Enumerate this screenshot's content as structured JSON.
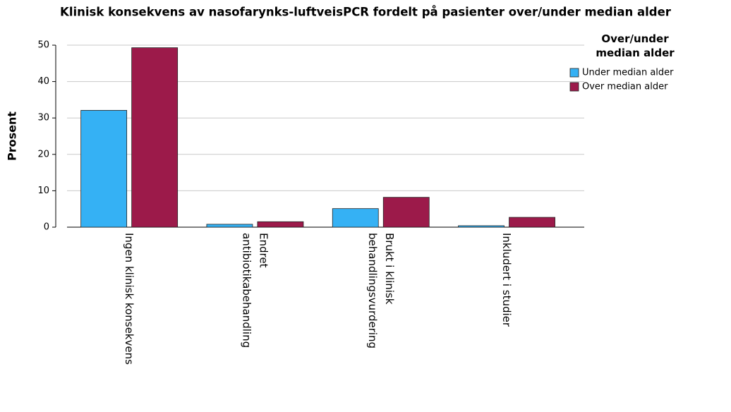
{
  "chart_data": {
    "type": "bar",
    "title": "Klinisk konsekvens av nasofarynks-luftveisPCR fordelt på pasienter over/under median alder",
    "y_label": "Prosent",
    "legend_title": "Over/under\nmedian alder",
    "categories": [
      "Ingen klinisk konsekvens",
      "Endret\nantibiotikabehandling",
      "Brukt i klinisk\nbehandlingsvurdering",
      "Inkludert i studier"
    ],
    "series": [
      {
        "name": "Under median alder",
        "color": "#35b1f4",
        "values": [
          32.1,
          0.8,
          5.1,
          0.4
        ]
      },
      {
        "name": "Over median alder",
        "color": "#9c1a4a",
        "values": [
          49.3,
          1.5,
          8.2,
          2.7
        ]
      }
    ],
    "ylim": [
      0,
      52
    ],
    "yticks": [
      0,
      10,
      20,
      30,
      40,
      50
    ],
    "grid": true,
    "legend": "top-right"
  }
}
